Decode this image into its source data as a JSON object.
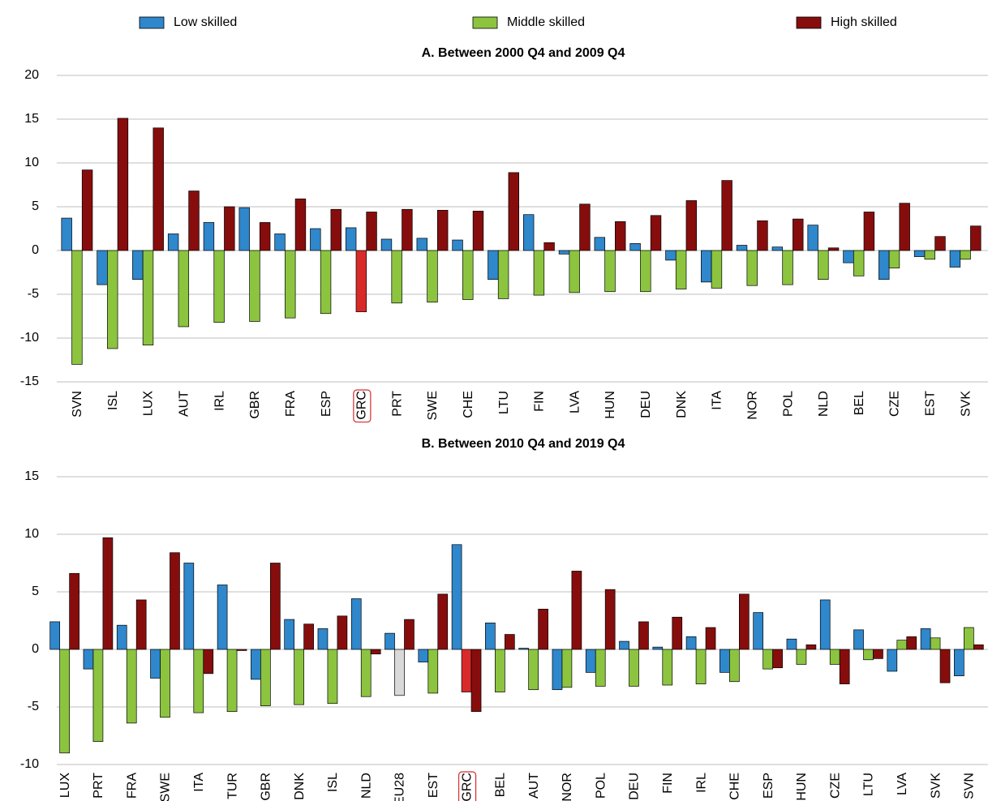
{
  "chart_data": [
    {
      "type": "bar",
      "title": "A. Between 2000 Q4 and 2009 Q4",
      "categories": [
        "SVN",
        "ISL",
        "LUX",
        "AUT",
        "IRL",
        "GBR",
        "FRA",
        "ESP",
        "GRC",
        "PRT",
        "SWE",
        "CHE",
        "LTU",
        "FIN",
        "LVA",
        "HUN",
        "DEU",
        "DNK",
        "ITA",
        "NOR",
        "POL",
        "NLD",
        "BEL",
        "CZE",
        "EST",
        "SVK"
      ],
      "series": [
        {
          "name": "Low skilled",
          "color": "#2f87cc",
          "values": [
            3.7,
            -3.9,
            -3.3,
            1.9,
            3.2,
            4.9,
            1.9,
            2.5,
            2.6,
            1.3,
            1.4,
            1.2,
            -3.3,
            4.1,
            -0.4,
            1.5,
            0.8,
            -1.1,
            -3.6,
            0.6,
            0.4,
            2.9,
            -1.4,
            -3.3,
            -0.7,
            -1.9
          ]
        },
        {
          "name": "Middle skilled",
          "color": "#8cc43f",
          "highlight_colors": {
            "GRC": "#d92a2a"
          },
          "values": [
            -13,
            -11.2,
            -10.8,
            -8.7,
            -8.2,
            -8.1,
            -7.7,
            -7.2,
            -7.0,
            -6.0,
            -5.9,
            -5.6,
            -5.5,
            -5.1,
            -4.8,
            -4.7,
            -4.7,
            -4.4,
            -4.3,
            -4.0,
            -3.9,
            -3.3,
            -2.9,
            -2.0,
            -1.0,
            -1.0
          ]
        },
        {
          "name": "High skilled",
          "color": "#870d0d",
          "values": [
            9.2,
            15.1,
            14.0,
            6.8,
            5.0,
            3.2,
            5.9,
            4.7,
            4.4,
            4.7,
            4.6,
            4.5,
            8.9,
            0.9,
            5.3,
            3.3,
            4.0,
            5.7,
            8.0,
            3.4,
            3.6,
            0.3,
            4.4,
            5.4,
            1.6,
            2.8
          ]
        }
      ],
      "highlight_label": "GRC",
      "ylim": [
        -15,
        20
      ],
      "yticks": [
        -15,
        -10,
        -5,
        0,
        5,
        10,
        15,
        20
      ],
      "grid": true,
      "legend": "top"
    },
    {
      "type": "bar",
      "title": "B. Between 2010 Q4 and 2019 Q4",
      "categories": [
        "LUX",
        "PRT",
        "FRA",
        "SWE",
        "ITA",
        "TUR",
        "GBR",
        "DNK",
        "ISL",
        "NLD",
        "EU28",
        "EST",
        "GRC",
        "BEL",
        "AUT",
        "NOR",
        "POL",
        "DEU",
        "FIN",
        "IRL",
        "CHE",
        "ESP",
        "HUN",
        "CZE",
        "LTU",
        "LVA",
        "SVK",
        "SVN"
      ],
      "series": [
        {
          "color": "#2f87cc",
          "values": [
            2.4,
            -1.7,
            2.1,
            -2.5,
            7.5,
            5.6,
            -2.6,
            2.6,
            1.8,
            4.4,
            1.4,
            -1.1,
            9.1,
            2.3,
            0.1,
            -3.5,
            -2.0,
            0.7,
            0.2,
            1.1,
            -2.0,
            3.2,
            0.9,
            4.3,
            1.7,
            -1.9,
            1.8,
            -2.3
          ]
        },
        {
          "color": "#8cc43f",
          "highlight_colors": {
            "GRC": "#d92a2a",
            "EU28": "#d9d9d9"
          },
          "values": [
            -9.0,
            -8.0,
            -6.4,
            -5.9,
            -5.5,
            -5.4,
            -4.9,
            -4.8,
            -4.7,
            -4.1,
            -4.0,
            -3.8,
            -3.7,
            -3.7,
            -3.5,
            -3.3,
            -3.2,
            -3.2,
            -3.1,
            -3.0,
            -2.8,
            -1.7,
            -1.3,
            -1.3,
            -0.9,
            0.8,
            1.0,
            1.9
          ]
        },
        {
          "color": "#870d0d",
          "values": [
            6.6,
            9.7,
            4.3,
            8.4,
            -2.1,
            -0.1,
            7.5,
            2.2,
            2.9,
            -0.4,
            2.6,
            4.8,
            -5.4,
            1.3,
            3.5,
            6.8,
            5.2,
            2.4,
            2.8,
            1.9,
            4.8,
            -1.6,
            0.4,
            -3.0,
            -0.8,
            1.1,
            -2.9,
            0.4
          ]
        }
      ],
      "highlight_label": "GRC",
      "ylim": [
        -10,
        15
      ],
      "yticks": [
        -10,
        -5,
        0,
        5,
        10,
        15
      ],
      "grid": true
    }
  ]
}
